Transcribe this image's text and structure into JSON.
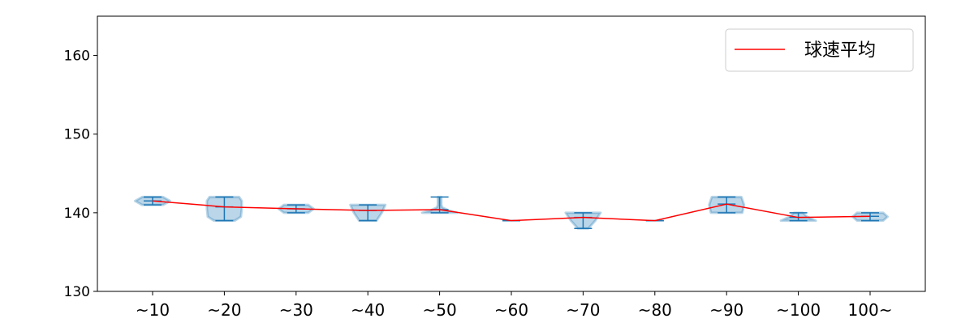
{
  "chart_data": {
    "type": "violin",
    "categories": [
      "~10",
      "~20",
      "~30",
      "~40",
      "~50",
      "~60",
      "~70",
      "~80",
      "~90",
      "~100",
      "100~"
    ],
    "ylim": [
      130,
      165
    ],
    "yticks": [
      130,
      140,
      150,
      160
    ],
    "grid": false,
    "legend_placement": "top-right",
    "colors": {
      "violin": "#1f77b4",
      "mean_line": "#ff0000"
    },
    "series": [
      {
        "name": "球速平均",
        "kind": "line",
        "values": [
          141.5,
          140.75,
          140.5,
          140.3,
          140.4,
          139.0,
          139.4,
          139.0,
          141.1,
          139.4,
          139.55
        ]
      }
    ],
    "violins": [
      {
        "min": 141,
        "max": 142,
        "profile": [
          [
            141,
            0.6
          ],
          [
            141.5,
            1
          ],
          [
            142,
            0.6
          ]
        ]
      },
      {
        "min": 139,
        "max": 142,
        "profile": [
          [
            139,
            0.6
          ],
          [
            139.5,
            0.95
          ],
          [
            140.5,
            1
          ],
          [
            141.5,
            1
          ],
          [
            142,
            0.85
          ]
        ]
      },
      {
        "min": 140,
        "max": 141,
        "profile": [
          [
            140,
            0.7
          ],
          [
            140.5,
            1
          ],
          [
            141,
            0.7
          ]
        ]
      },
      {
        "min": 139,
        "max": 141,
        "profile": [
          [
            139,
            0.5
          ],
          [
            140,
            0.8
          ],
          [
            141,
            1
          ]
        ]
      },
      {
        "min": 140,
        "max": 142,
        "profile": [
          [
            140,
            1
          ],
          [
            140.3,
            0.5
          ],
          [
            140.7,
            0.15
          ],
          [
            141,
            0.1
          ],
          [
            142,
            0.1
          ]
        ]
      },
      {
        "min": 139,
        "max": 139,
        "profile": []
      },
      {
        "min": 138,
        "max": 140,
        "profile": [
          [
            138,
            0.3
          ],
          [
            139,
            0.7
          ],
          [
            140,
            1
          ]
        ]
      },
      {
        "min": 139,
        "max": 139,
        "profile": []
      },
      {
        "min": 140,
        "max": 142,
        "profile": [
          [
            140,
            0.9
          ],
          [
            141,
            1
          ],
          [
            142,
            0.85
          ]
        ]
      },
      {
        "min": 139,
        "max": 140,
        "profile": [
          [
            139,
            1
          ],
          [
            139.5,
            0.5
          ],
          [
            140,
            0.25
          ]
        ]
      },
      {
        "min": 139,
        "max": 140,
        "profile": [
          [
            139,
            0.75
          ],
          [
            139.5,
            1
          ],
          [
            140,
            0.75
          ]
        ]
      }
    ]
  }
}
